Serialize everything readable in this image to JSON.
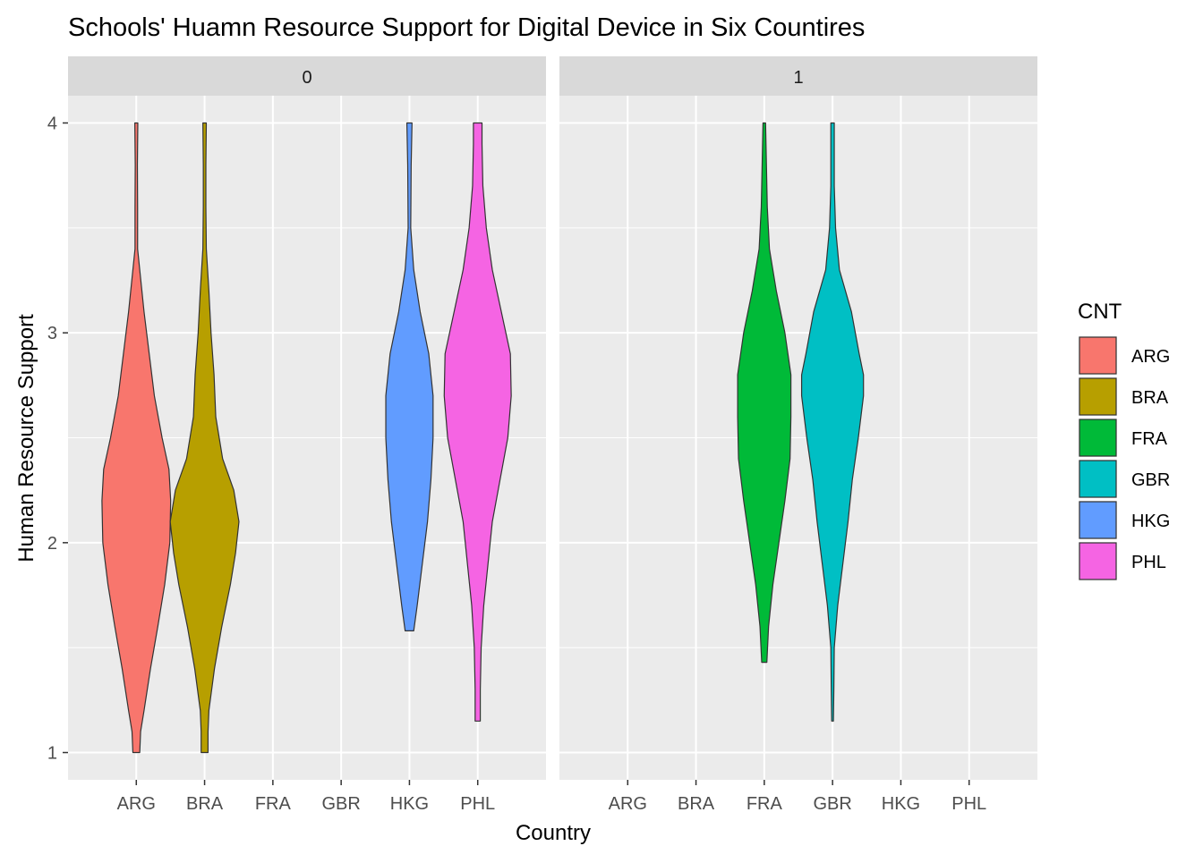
{
  "chart_data": {
    "type": "violin",
    "title": "Schools' Huamn Resource Support for Digital Device in Six Countires",
    "xlabel": "Country",
    "ylabel": "Human Resource Support",
    "categories": [
      "ARG",
      "BRA",
      "FRA",
      "GBR",
      "HKG",
      "PHL"
    ],
    "y_ticks": [
      1,
      2,
      3,
      4
    ],
    "ylim": [
      0.87,
      4.13
    ],
    "grid": true,
    "legend": {
      "title": "CNT",
      "placement": "right"
    },
    "facets": [
      {
        "label": "0",
        "series": [
          {
            "name": "ARG",
            "color": "#F8766D",
            "density": [
              [
                1.0,
                0.08
              ],
              [
                1.1,
                0.1
              ],
              [
                1.2,
                0.18
              ],
              [
                1.4,
                0.33
              ],
              [
                1.6,
                0.5
              ],
              [
                1.8,
                0.66
              ],
              [
                2.0,
                0.78
              ],
              [
                2.2,
                0.8
              ],
              [
                2.35,
                0.76
              ],
              [
                2.5,
                0.6
              ],
              [
                2.7,
                0.42
              ],
              [
                2.9,
                0.3
              ],
              [
                3.1,
                0.18
              ],
              [
                3.3,
                0.08
              ],
              [
                3.4,
                0.03
              ],
              [
                3.6,
                0.03
              ],
              [
                3.8,
                0.025
              ],
              [
                4.0,
                0.035
              ]
            ]
          },
          {
            "name": "BRA",
            "color": "#B79F00",
            "density": [
              [
                1.0,
                0.08
              ],
              [
                1.1,
                0.08
              ],
              [
                1.2,
                0.1
              ],
              [
                1.4,
                0.23
              ],
              [
                1.6,
                0.4
              ],
              [
                1.8,
                0.6
              ],
              [
                1.95,
                0.72
              ],
              [
                2.1,
                0.8
              ],
              [
                2.25,
                0.68
              ],
              [
                2.4,
                0.42
              ],
              [
                2.6,
                0.26
              ],
              [
                2.8,
                0.22
              ],
              [
                3.0,
                0.15
              ],
              [
                3.2,
                0.1
              ],
              [
                3.4,
                0.04
              ],
              [
                3.6,
                0.03
              ],
              [
                3.8,
                0.03
              ],
              [
                4.0,
                0.04
              ]
            ]
          },
          {
            "name": "HKG",
            "color": "#619CFF",
            "density": [
              [
                1.58,
                0.1
              ],
              [
                1.7,
                0.18
              ],
              [
                1.9,
                0.3
              ],
              [
                2.1,
                0.42
              ],
              [
                2.3,
                0.5
              ],
              [
                2.5,
                0.55
              ],
              [
                2.7,
                0.55
              ],
              [
                2.9,
                0.45
              ],
              [
                3.1,
                0.25
              ],
              [
                3.3,
                0.1
              ],
              [
                3.5,
                0.03
              ],
              [
                3.8,
                0.04
              ],
              [
                4.0,
                0.06
              ]
            ]
          },
          {
            "name": "PHL",
            "color": "#F564E3",
            "density": [
              [
                1.15,
                0.06
              ],
              [
                1.3,
                0.06
              ],
              [
                1.5,
                0.08
              ],
              [
                1.7,
                0.14
              ],
              [
                1.9,
                0.24
              ],
              [
                2.1,
                0.34
              ],
              [
                2.3,
                0.52
              ],
              [
                2.5,
                0.7
              ],
              [
                2.7,
                0.78
              ],
              [
                2.9,
                0.76
              ],
              [
                3.1,
                0.55
              ],
              [
                3.3,
                0.34
              ],
              [
                3.5,
                0.2
              ],
              [
                3.7,
                0.12
              ],
              [
                3.9,
                0.1
              ],
              [
                4.0,
                0.1
              ]
            ]
          }
        ]
      },
      {
        "label": "1",
        "series": [
          {
            "name": "FRA",
            "color": "#00BA38",
            "density": [
              [
                1.43,
                0.06
              ],
              [
                1.6,
                0.1
              ],
              [
                1.8,
                0.2
              ],
              [
                2.0,
                0.34
              ],
              [
                2.2,
                0.48
              ],
              [
                2.4,
                0.6
              ],
              [
                2.6,
                0.62
              ],
              [
                2.8,
                0.62
              ],
              [
                3.0,
                0.48
              ],
              [
                3.2,
                0.28
              ],
              [
                3.4,
                0.12
              ],
              [
                3.6,
                0.07
              ],
              [
                3.8,
                0.05
              ],
              [
                4.0,
                0.03
              ]
            ]
          },
          {
            "name": "GBR",
            "color": "#00BFC4",
            "density": [
              [
                1.15,
                0.02
              ],
              [
                1.3,
                0.03
              ],
              [
                1.5,
                0.04
              ],
              [
                1.7,
                0.12
              ],
              [
                1.9,
                0.24
              ],
              [
                2.1,
                0.36
              ],
              [
                2.3,
                0.46
              ],
              [
                2.5,
                0.6
              ],
              [
                2.7,
                0.72
              ],
              [
                2.8,
                0.72
              ],
              [
                2.9,
                0.62
              ],
              [
                3.1,
                0.44
              ],
              [
                3.3,
                0.16
              ],
              [
                3.5,
                0.07
              ],
              [
                3.7,
                0.04
              ],
              [
                4.0,
                0.04
              ]
            ]
          }
        ]
      }
    ],
    "legend_entries": [
      {
        "name": "ARG",
        "color": "#F8766D"
      },
      {
        "name": "BRA",
        "color": "#B79F00"
      },
      {
        "name": "FRA",
        "color": "#00BA38"
      },
      {
        "name": "GBR",
        "color": "#00BFC4"
      },
      {
        "name": "HKG",
        "color": "#619CFF"
      },
      {
        "name": "PHL",
        "color": "#F564E3"
      }
    ]
  }
}
